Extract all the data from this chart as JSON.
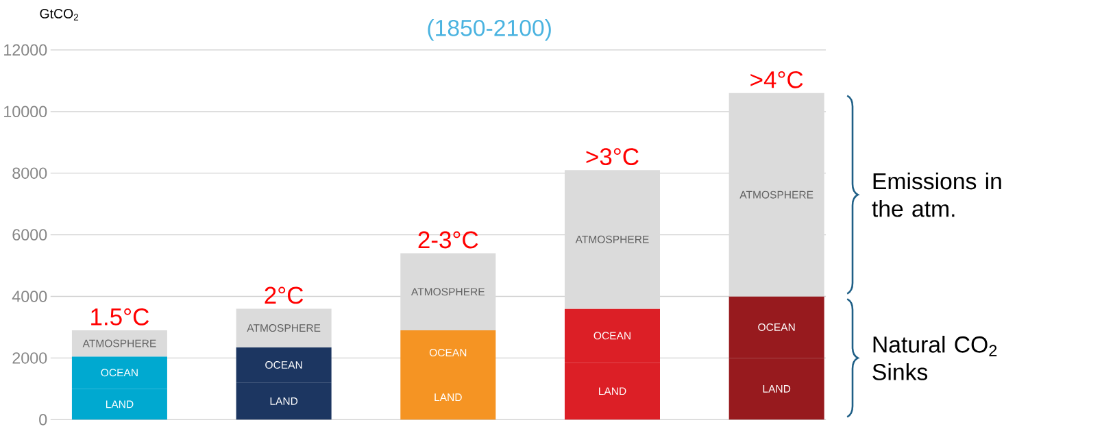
{
  "chart_data": {
    "type": "bar",
    "stacked": true,
    "title": "(1850-2100)",
    "ylabel": "GtCO$_{2}$",
    "categories": [
      "1.5°C",
      "2°C",
      "2-3°C",
      ">3°C",
      ">4°C"
    ],
    "ylim": [
      0,
      12000
    ],
    "yticks": [
      0,
      2000,
      4000,
      6000,
      8000,
      10000,
      12000
    ],
    "grid": "y",
    "series": [
      {
        "name": "LAND",
        "colors": [
          "#00a9d0",
          "#1c3661",
          "#f59423",
          "#dc1f26",
          "#971a1e"
        ],
        "values": [
          1000,
          1200,
          1450,
          1850,
          2000
        ]
      },
      {
        "name": "OCEAN",
        "colors": [
          "#00a9d0",
          "#1c3661",
          "#f59423",
          "#dc1f26",
          "#971a1e"
        ],
        "values": [
          1050,
          1150,
          1450,
          1750,
          2000
        ]
      },
      {
        "name": "ATMOSPHERE",
        "color": "#dbdbdb",
        "values": [
          850,
          1250,
          2500,
          4500,
          6600
        ]
      }
    ],
    "annotations": [
      "Emissions in the atm.",
      "Natural CO$_{2}$ Sinks"
    ]
  }
}
